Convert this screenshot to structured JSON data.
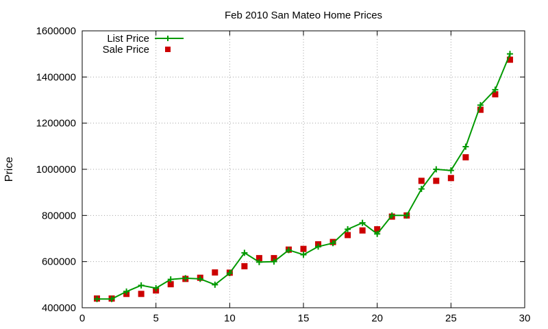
{
  "chart_data": {
    "type": "line",
    "title": "Feb 2010 San Mateo Home Prices",
    "xlabel": "",
    "ylabel": "Price",
    "xlim": [
      0,
      30
    ],
    "ylim": [
      400000,
      1600000
    ],
    "x_ticks": [
      0,
      5,
      10,
      15,
      20,
      25,
      30
    ],
    "y_ticks": [
      400000,
      600000,
      800000,
      1000000,
      1200000,
      1400000,
      1600000
    ],
    "grid": true,
    "legend_position": "top-left",
    "x": [
      1,
      2,
      3,
      4,
      5,
      6,
      7,
      8,
      9,
      10,
      11,
      12,
      13,
      14,
      15,
      16,
      17,
      18,
      19,
      20,
      21,
      22,
      23,
      24,
      25,
      26,
      27,
      28,
      29
    ],
    "series": [
      {
        "name": "List Price",
        "style": "line-with-plus-markers",
        "color": "#009900",
        "values": [
          438000,
          438000,
          470000,
          497000,
          485000,
          523000,
          528000,
          525000,
          500000,
          550000,
          638000,
          598000,
          600000,
          650000,
          630000,
          665000,
          680000,
          740000,
          768000,
          720000,
          800000,
          800000,
          915000,
          1000000,
          995000,
          1098000,
          1278000,
          1345000,
          1500000
        ]
      },
      {
        "name": "Sale Price",
        "style": "square-points",
        "color": "#cc0000",
        "values": [
          440000,
          440000,
          460000,
          460000,
          475000,
          502000,
          525000,
          530000,
          553000,
          552000,
          580000,
          615000,
          615000,
          652000,
          655000,
          675000,
          685000,
          715000,
          735000,
          740000,
          795000,
          800000,
          950000,
          950000,
          962000,
          1052000,
          1258000,
          1325000,
          1475000
        ]
      }
    ]
  }
}
